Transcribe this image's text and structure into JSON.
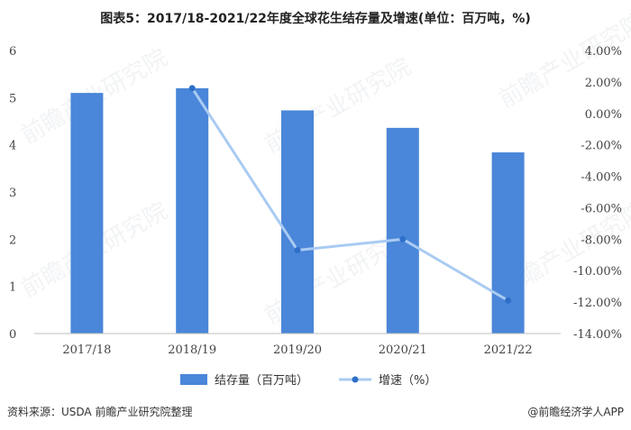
{
  "title": "图表5：2017/18-2021/22年度全球花生结存量及增速(单位：百万吨，%)",
  "source": "资料来源：USDA 前瞻产业研究院整理",
  "brand": "@前瞻经济学人APP",
  "watermark": "前瞻产业研究院",
  "chart_data": {
    "type": "bar+line",
    "categories": [
      "2017/18",
      "2018/19",
      "2019/20",
      "2020/21",
      "2021/22"
    ],
    "series": [
      {
        "name": "结存量（百万吨）",
        "type": "bar",
        "axis": "left",
        "values": [
          5.1,
          5.2,
          4.73,
          4.36,
          3.84
        ],
        "color": "#4a86d9"
      },
      {
        "name": "增速（%）",
        "type": "line",
        "axis": "right",
        "values": [
          null,
          1.6,
          -8.7,
          -8.0,
          -11.9
        ],
        "color": "#a9cbf2",
        "marker_color": "#2e6fc9"
      }
    ],
    "y_left": {
      "min": 0,
      "max": 6,
      "ticks": [
        "0",
        "1",
        "2",
        "3",
        "4",
        "5",
        "6"
      ]
    },
    "y_right": {
      "min": -14,
      "max": 4,
      "ticks": [
        "-14.00%",
        "-12.00%",
        "-10.00%",
        "-8.00%",
        "-6.00%",
        "-4.00%",
        "-2.00%",
        "0.00%",
        "2.00%",
        "4.00%"
      ]
    },
    "grid": false,
    "legend_position": "bottom"
  }
}
